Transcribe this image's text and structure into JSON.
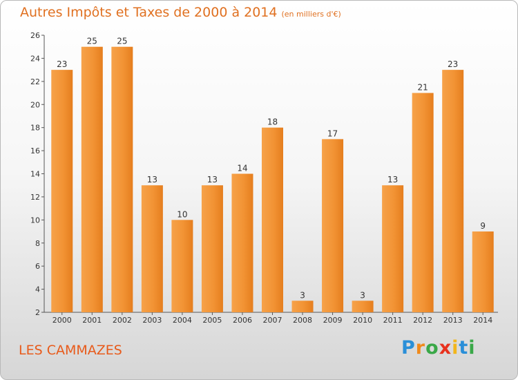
{
  "title": "Autres Impôts et Taxes de 2000 à 2014",
  "title_unit": "(en milliers d'€)",
  "commune": "LES CAMMAZES",
  "logo": {
    "letters": [
      "P",
      "r",
      "o",
      "x",
      "i",
      "t",
      "i"
    ],
    "colors": [
      "#2a8fd8",
      "#f08a1c",
      "#3aa848",
      "#e8321e",
      "#f2b61c",
      "#2a8fd8",
      "#3aa848"
    ]
  },
  "chart_data": {
    "type": "bar",
    "title": "Autres Impôts et Taxes de 2000 à 2014",
    "subtitle": "(en milliers d'€)",
    "xlabel": "",
    "ylabel": "",
    "categories": [
      "2000",
      "2001",
      "2002",
      "2003",
      "2004",
      "2005",
      "2006",
      "2007",
      "2008",
      "2009",
      "2010",
      "2011",
      "2012",
      "2013",
      "2014"
    ],
    "values": [
      23,
      25,
      25,
      13,
      10,
      13,
      14,
      18,
      3,
      17,
      3,
      13,
      21,
      23,
      9
    ],
    "ylim": [
      2,
      26
    ],
    "yticks": [
      2,
      4,
      6,
      8,
      10,
      12,
      14,
      16,
      18,
      20,
      22,
      24,
      26
    ],
    "grid": false,
    "legend": "none",
    "bar_color": "#f0902e"
  }
}
